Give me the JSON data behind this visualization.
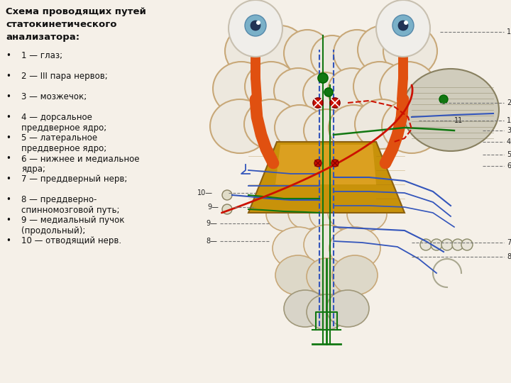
{
  "bg_color": "#f5f0e8",
  "title_lines": [
    "Схема проводящих путей",
    "статокинетического",
    "анализатора:"
  ],
  "bullet_items": [
    "1 — глаз;",
    "2 — III пара нервов;",
    "3 — мозжечок;",
    "4 — дорсальное\n   преддверное ядро;",
    "5 — латеральное\n   преддверное ядро;",
    "6 — нижнее и медиальное\n   ядра;",
    "7 — преддверный нерв;",
    "8 — преддверно-\n   спинномозговой путь;",
    " 9 — медиальный пучок\n   (продольный);",
    "10 — отводящий нерв."
  ],
  "title_fontsize": 9.5,
  "bullet_fontsize": 8.5,
  "font_family": "DejaVu Sans",
  "bg_anatomy": "#f0ece0",
  "cream": "#ede8de",
  "cream_edge": "#c8a878",
  "gold": "#d4a020",
  "gold_edge": "#a07810",
  "red": "#cc1100",
  "blue": "#3355bb",
  "green": "#117711",
  "orange": "#dd5500",
  "nerve_cream": "#e8e0cc"
}
